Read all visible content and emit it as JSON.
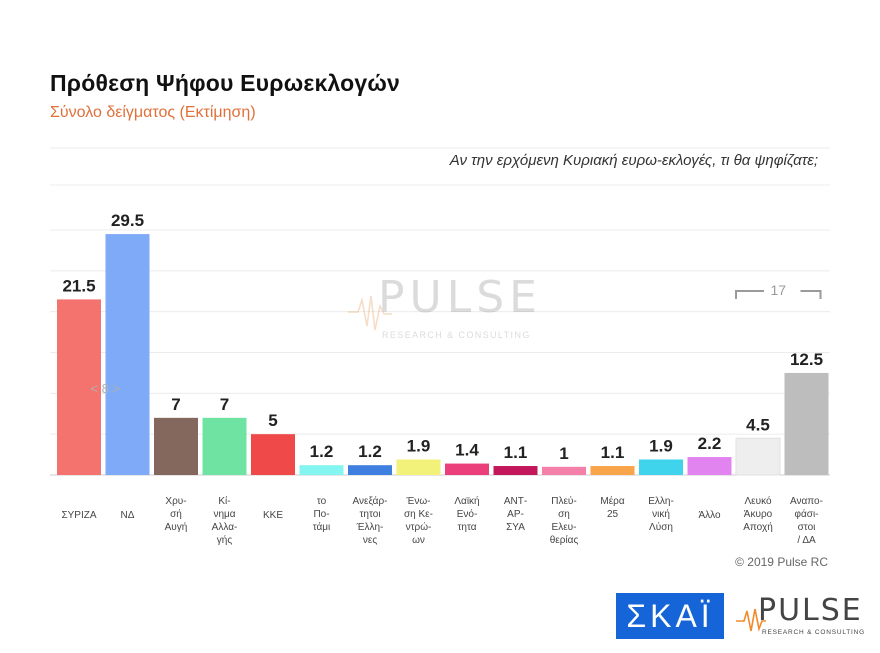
{
  "header": {
    "title": "Πρόθεση Ψήφου Ευρωεκλογών",
    "subtitle": "Σύνολο δείγματος   (Εκτίμηση)",
    "question": "Αν την ερχόμενη Κυριακή ευρω-εκλογές, τι θα ψηφίζατε;"
  },
  "footer": {
    "copyright": "© 2019 Pulse RC",
    "skai_logo": "ΣΚΑΪ",
    "pulse_logo": "PULSE",
    "pulse_logo_sub": "RESEARCH & CONSULTING"
  },
  "watermark": {
    "word": "PULSE",
    "sub": "RESEARCH & CONSULTING"
  },
  "colors": {
    "ΣΥΡΙΖΑ": "#f4736f",
    "ΝΔ": "#7faaf7",
    "Χρυσή Αυγή": "#84685d",
    "Κίνημα Αλλαγής": "#6ee3a2",
    "ΚΚΕ": "#f0494a",
    "το Ποτάμι": "#84f5f0",
    "Ανεξάρτητοι Έλληνες": "#3f7fe0",
    "Ένωση Κεντρώων": "#f2f27a",
    "Λαϊκή Ενότητα": "#ea3f7a",
    "ΑΝΤΑΡΣΥΑ": "#c2185b",
    "Πλεύση Ελευθερίας": "#f47fa8",
    "Μέρα 25": "#f8a44a",
    "Ελληνική Λύση": "#3fd4ec",
    "Άλλο": "#e184f0",
    "Λευκό Άκυρο Αποχή": "#eeeeee",
    "Αναποφάσιστοι / ΔΑ": "#bdbdbd"
  },
  "chart_data": {
    "type": "bar",
    "categories": [
      "ΣΥΡΙΖΑ",
      "ΝΔ",
      "Χρυσή Αυγή",
      "Κίνημα Αλλαγής",
      "ΚΚΕ",
      "το Ποτάμι",
      "Ανεξάρτητοι Έλληνες",
      "Ένωση Κεντρώων",
      "Λαϊκή Ενότητα",
      "ΑΝΤΑΡΣΥΑ",
      "Πλεύση Ελευθερίας",
      "Μέρα 25",
      "Ελληνική Λύση",
      "Άλλο",
      "Λευκό Άκυρο Αποχή",
      "Αναποφάσιστοι / ΔΑ"
    ],
    "tick_labels": [
      [
        "ΣΥΡΙΖΑ"
      ],
      [
        "ΝΔ"
      ],
      [
        "Χρυ-",
        "σή",
        "Αυγή"
      ],
      [
        "Κί-",
        "νημα",
        "Αλλα-",
        "γής"
      ],
      [
        "ΚΚΕ"
      ],
      [
        "το",
        "Πο-",
        "τάμι"
      ],
      [
        "Ανεξάρ-",
        "τητοι",
        "Έλλη-",
        "νες"
      ],
      [
        "Ένω-",
        "ση Κε-",
        "ντρώ-",
        "ων"
      ],
      [
        "Λαϊκή",
        "Ενό-",
        "τητα"
      ],
      [
        "ΑΝΤ-",
        "ΑΡ-",
        "ΣΥΑ"
      ],
      [
        "Πλεύ-",
        "ση",
        "Ελευ-",
        "θερίας"
      ],
      [
        "Μέρα",
        "25"
      ],
      [
        "Ελλη-",
        "νική",
        "Λύση"
      ],
      [
        "Άλλο"
      ],
      [
        "Λευκό",
        "Άκυρο",
        "Αποχή"
      ],
      [
        "Αναπο-",
        "φάσι-",
        "στοι",
        "/ ΔΑ"
      ]
    ],
    "values": [
      21.5,
      29.5,
      7,
      7,
      5,
      1.2,
      1.2,
      1.9,
      1.4,
      1.1,
      1,
      1.1,
      1.9,
      2.2,
      4.5,
      12.5
    ],
    "value_labels": [
      "21.5",
      "29.5",
      "7",
      "7",
      "5",
      "1.2",
      "1.2",
      "1.9",
      "1.4",
      "1.1",
      "1",
      "1.1",
      "1.9",
      "2.2",
      "4.5",
      "12.5"
    ],
    "ylim": [
      0,
      30
    ],
    "grid": true,
    "annotations": [
      {
        "text": "< 8 >",
        "between": [
          "ΣΥΡΙΖΑ",
          "ΝΔ"
        ]
      },
      {
        "text": "17",
        "between": [
          "Λευκό Άκυρο Αποχή",
          "Αναποφάσιστοι / ΔΑ"
        ]
      }
    ]
  }
}
